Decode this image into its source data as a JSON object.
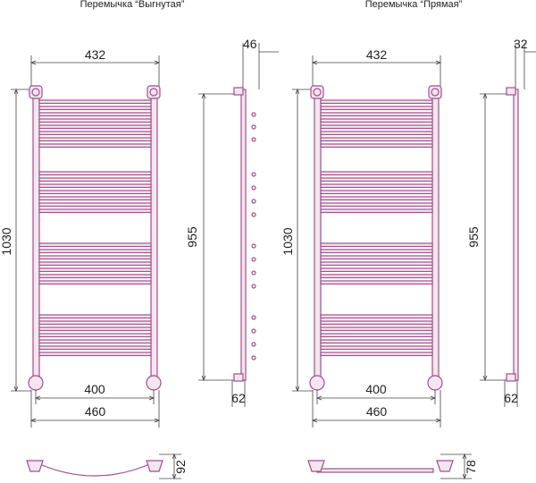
{
  "variants": [
    {
      "title": "Перемычка “Выгнутая”",
      "top_width": 432,
      "height": 1030,
      "axis_width": 400,
      "overall_width": 460,
      "bottom_depth": 92,
      "side_depth": 46,
      "side_height": 955,
      "side_offset": 62
    },
    {
      "title": "Перемычка “Прямая”",
      "top_width": 432,
      "height": 1030,
      "axis_width": 400,
      "overall_width": 460,
      "bottom_depth": 78,
      "side_depth": 32,
      "side_height": 955,
      "side_offset": 62
    }
  ]
}
